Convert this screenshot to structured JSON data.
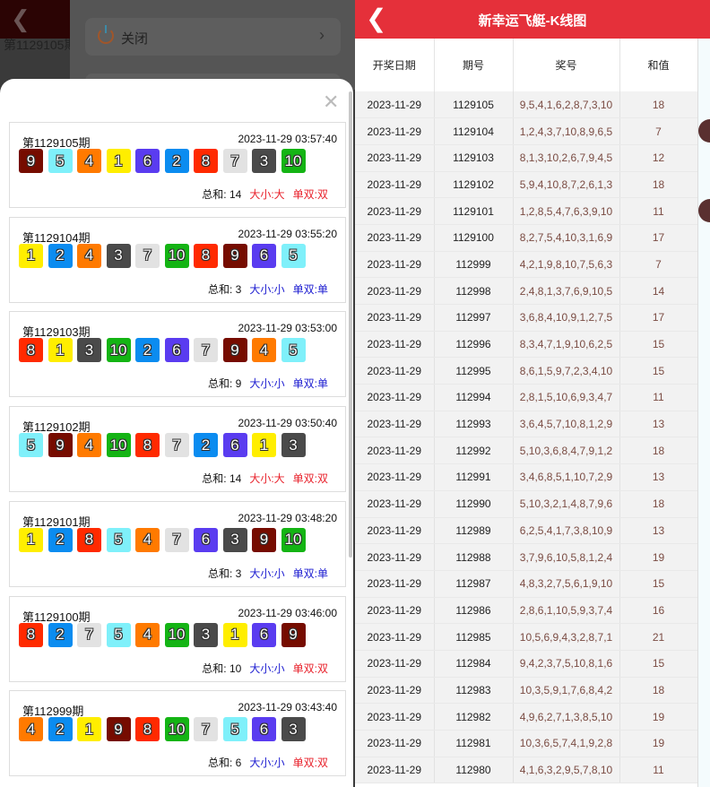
{
  "background": {
    "period_text": "第1129105期",
    "menu": {
      "close_label": "关闭"
    }
  },
  "ball_colors": {
    "1": "#ffee00",
    "2": "#0b8cf0",
    "3": "#4a4a4a",
    "4": "#ff7a00",
    "5": "#7ff0fa",
    "6": "#5a3cf0",
    "7": "#e2e2e2",
    "8": "#ff2a00",
    "9": "#760c00",
    "10": "#14b414"
  },
  "result_colors": {
    "big_even": "#e8202a",
    "small_odd": "#1a1ad0"
  },
  "cards": [
    {
      "period": "第1129105期",
      "time": "2023-11-29 03:57:40",
      "balls": [
        9,
        5,
        4,
        1,
        6,
        2,
        8,
        7,
        3,
        10
      ],
      "sum": "总和: 14",
      "size": "大小:大",
      "size_color": "#e8202a",
      "parity": "单双:双",
      "parity_color": "#e8202a"
    },
    {
      "period": "第1129104期",
      "time": "2023-11-29 03:55:20",
      "balls": [
        1,
        2,
        4,
        3,
        7,
        10,
        8,
        9,
        6,
        5
      ],
      "sum": "总和: 3",
      "size": "大小:小",
      "size_color": "#1a1ad0",
      "parity": "单双:单",
      "parity_color": "#1a1ad0"
    },
    {
      "period": "第1129103期",
      "time": "2023-11-29 03:53:00",
      "balls": [
        8,
        1,
        3,
        10,
        2,
        6,
        7,
        9,
        4,
        5
      ],
      "sum": "总和: 9",
      "size": "大小:小",
      "size_color": "#1a1ad0",
      "parity": "单双:单",
      "parity_color": "#1a1ad0"
    },
    {
      "period": "第1129102期",
      "time": "2023-11-29 03:50:40",
      "balls": [
        5,
        9,
        4,
        10,
        8,
        7,
        2,
        6,
        1,
        3
      ],
      "sum": "总和: 14",
      "size": "大小:大",
      "size_color": "#e8202a",
      "parity": "单双:双",
      "parity_color": "#e8202a"
    },
    {
      "period": "第1129101期",
      "time": "2023-11-29 03:48:20",
      "balls": [
        1,
        2,
        8,
        5,
        4,
        7,
        6,
        3,
        9,
        10
      ],
      "sum": "总和: 3",
      "size": "大小:小",
      "size_color": "#1a1ad0",
      "parity": "单双:单",
      "parity_color": "#1a1ad0"
    },
    {
      "period": "第1129100期",
      "time": "2023-11-29 03:46:00",
      "balls": [
        8,
        2,
        7,
        5,
        4,
        10,
        3,
        1,
        6,
        9
      ],
      "sum": "总和: 10",
      "size": "大小:小",
      "size_color": "#1a1ad0",
      "parity": "单双:双",
      "parity_color": "#e8202a"
    },
    {
      "period": "第112999期",
      "time": "2023-11-29 03:43:40",
      "balls": [
        4,
        2,
        1,
        9,
        8,
        10,
        7,
        5,
        6,
        3
      ],
      "sum": "总和: 6",
      "size": "大小:小",
      "size_color": "#1a1ad0",
      "parity": "单双:双",
      "parity_color": "#e8202a"
    }
  ],
  "header": {
    "title": "新幸运飞艇-K线图"
  },
  "table": {
    "columns": [
      "开奖日期",
      "期号",
      "奖号",
      "和值"
    ],
    "rows": [
      [
        "2023-11-29",
        "1129105",
        "9,5,4,1,6,2,8,7,3,10",
        "18"
      ],
      [
        "2023-11-29",
        "1129104",
        "1,2,4,3,7,10,8,9,6,5",
        "7"
      ],
      [
        "2023-11-29",
        "1129103",
        "8,1,3,10,2,6,7,9,4,5",
        "12"
      ],
      [
        "2023-11-29",
        "1129102",
        "5,9,4,10,8,7,2,6,1,3",
        "18"
      ],
      [
        "2023-11-29",
        "1129101",
        "1,2,8,5,4,7,6,3,9,10",
        "11"
      ],
      [
        "2023-11-29",
        "1129100",
        "8,2,7,5,4,10,3,1,6,9",
        "17"
      ],
      [
        "2023-11-29",
        "112999",
        "4,2,1,9,8,10,7,5,6,3",
        "7"
      ],
      [
        "2023-11-29",
        "112998",
        "2,4,8,1,3,7,6,9,10,5",
        "14"
      ],
      [
        "2023-11-29",
        "112997",
        "3,6,8,4,10,9,1,2,7,5",
        "17"
      ],
      [
        "2023-11-29",
        "112996",
        "8,3,4,7,1,9,10,6,2,5",
        "15"
      ],
      [
        "2023-11-29",
        "112995",
        "8,6,1,5,9,7,2,3,4,10",
        "15"
      ],
      [
        "2023-11-29",
        "112994",
        "2,8,1,5,10,6,9,3,4,7",
        "11"
      ],
      [
        "2023-11-29",
        "112993",
        "3,6,4,5,7,10,8,1,2,9",
        "13"
      ],
      [
        "2023-11-29",
        "112992",
        "5,10,3,6,8,4,7,9,1,2",
        "18"
      ],
      [
        "2023-11-29",
        "112991",
        "3,4,6,8,5,1,10,7,2,9",
        "13"
      ],
      [
        "2023-11-29",
        "112990",
        "5,10,3,2,1,4,8,7,9,6",
        "18"
      ],
      [
        "2023-11-29",
        "112989",
        "6,2,5,4,1,7,3,8,10,9",
        "13"
      ],
      [
        "2023-11-29",
        "112988",
        "3,7,9,6,10,5,8,1,2,4",
        "19"
      ],
      [
        "2023-11-29",
        "112987",
        "4,8,3,2,7,5,6,1,9,10",
        "15"
      ],
      [
        "2023-11-29",
        "112986",
        "2,8,6,1,10,5,9,3,7,4",
        "16"
      ],
      [
        "2023-11-29",
        "112985",
        "10,5,6,9,4,3,2,8,7,1",
        "21"
      ],
      [
        "2023-11-29",
        "112984",
        "9,4,2,3,7,5,10,8,1,6",
        "15"
      ],
      [
        "2023-11-29",
        "112983",
        "10,3,5,9,1,7,6,8,4,2",
        "18"
      ],
      [
        "2023-11-29",
        "112982",
        "4,9,6,2,7,1,3,8,5,10",
        "19"
      ],
      [
        "2023-11-29",
        "112981",
        "10,3,6,5,7,4,1,9,2,8",
        "19"
      ],
      [
        "2023-11-29",
        "112980",
        "4,1,6,3,2,9,5,7,8,10",
        "11"
      ]
    ]
  }
}
